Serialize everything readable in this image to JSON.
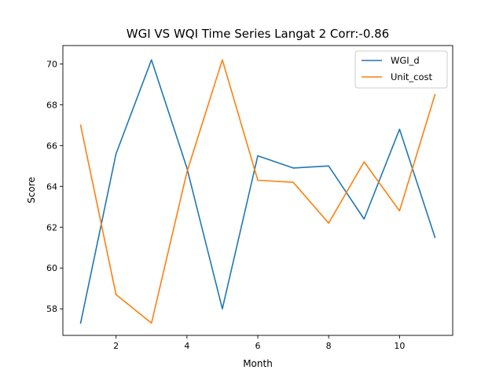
{
  "chart_data": {
    "type": "line",
    "title": "WGI VS WQI Time Series Langat 2 Corr:-0.86",
    "xlabel": "Month",
    "ylabel": "Score",
    "xlim": [
      0.5,
      11.5
    ],
    "ylim": [
      56.7,
      70.9
    ],
    "xticks": [
      2,
      4,
      6,
      8,
      10
    ],
    "yticks": [
      58,
      60,
      62,
      64,
      66,
      68,
      70
    ],
    "grid": false,
    "legend_position": "top-right",
    "x": [
      1,
      2,
      3,
      4,
      5,
      6,
      7,
      8,
      9,
      10,
      11
    ],
    "series": [
      {
        "name": "WGI_d",
        "color": "#1f77b4",
        "values": [
          57.3,
          65.6,
          70.2,
          64.9,
          58.0,
          65.5,
          64.9,
          65.0,
          62.4,
          66.8,
          61.5
        ]
      },
      {
        "name": "Unit_cost",
        "color": "#ff7f0e",
        "values": [
          67.0,
          58.7,
          57.3,
          64.7,
          70.2,
          64.3,
          64.2,
          62.2,
          65.2,
          62.8,
          68.5
        ]
      }
    ]
  }
}
